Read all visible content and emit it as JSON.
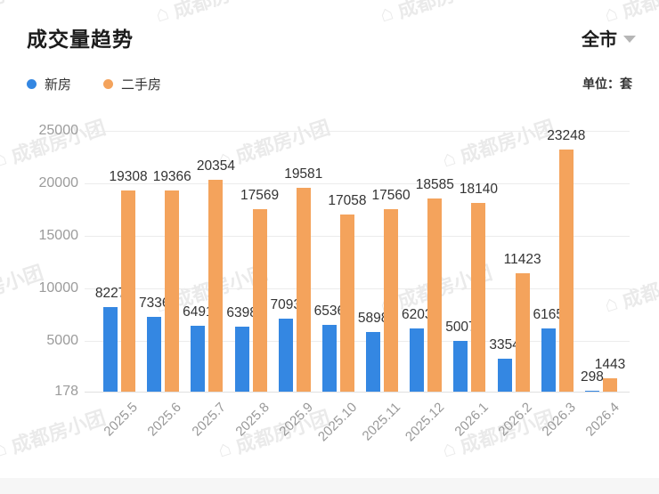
{
  "header": {
    "title": "成交量趋势",
    "scope_selector": {
      "label": "全市"
    },
    "unit_label": "单位：套",
    "legend": [
      {
        "label": "新房",
        "color": "#3487e2"
      },
      {
        "label": "二手房",
        "color": "#f4a35c"
      }
    ]
  },
  "watermark": {
    "text": "成都房小团"
  },
  "chart_data": {
    "type": "bar",
    "title": "成交量趋势",
    "unit": "套",
    "categories": [
      "2025.5",
      "2025.6",
      "2025.7",
      "2025.8",
      "2025.9",
      "2025.10",
      "2025.11",
      "2025.12",
      "2026.1",
      "2026.2",
      "2026.3",
      "2026.4"
    ],
    "series": [
      {
        "name": "新房",
        "color": "#3487e2",
        "values": [
          8227,
          7336,
          6491,
          6398,
          7093,
          6536,
          5898,
          6203,
          5007,
          3354,
          6165,
          298
        ]
      },
      {
        "name": "二手房",
        "color": "#f4a35c",
        "values": [
          19308,
          19366,
          20354,
          17569,
          19581,
          17058,
          17560,
          18585,
          18140,
          11423,
          23248,
          1443
        ]
      }
    ],
    "y_ticks": [
      178,
      5000,
      10000,
      15000,
      20000,
      25000
    ],
    "ylim": [
      178,
      25000
    ],
    "grid": true,
    "legend_position": "top-left",
    "x_label_rotation": -45,
    "value_labels": true
  }
}
